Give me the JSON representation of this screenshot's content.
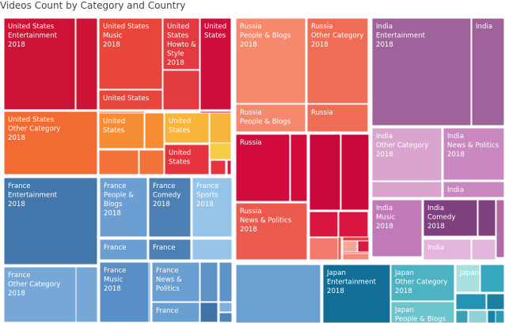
{
  "chart_data": {
    "type": "treemap",
    "title": "Videos Count by Category and Country",
    "colors": {
      "United States": [
        "#c8102e",
        "#d61f3a",
        "#e8483e",
        "#f0642f",
        "#f6883a",
        "#f7a743",
        "#f7c242",
        "#f8d54a"
      ],
      "Russia": [
        "#f4876b",
        "#e8594e",
        "#d8103a",
        "#c5062e",
        "#ef3b3b",
        "#f4a59a"
      ],
      "India": [
        "#9c5a91",
        "#c989bf",
        "#d4a1ca",
        "#7a2f78",
        "#e1b8da"
      ],
      "France": [
        "#3f73a7",
        "#5e8fc2",
        "#78a9d6",
        "#92c0e4",
        "#4979a9"
      ],
      "Japan": [
        "#0f6f94",
        "#4fb8c4",
        "#7dcdd2",
        "#a9dede",
        "#2a92b0"
      ]
    },
    "cells": [
      {
        "country": "United States",
        "category": "Entertainment",
        "label": [
          "United States",
          "Entertainment",
          "2018"
        ],
        "color": "#cc1235"
      },
      {
        "country": "United States",
        "category": "Entertainment",
        "label": [],
        "color": "#cc1235"
      },
      {
        "country": "United States",
        "category": "Music",
        "label": [
          "United States",
          "Music",
          "2018"
        ],
        "color": "#e9463b"
      },
      {
        "country": "United States",
        "category": "Music",
        "label": [
          "United States"
        ],
        "color": "#e9463b"
      },
      {
        "country": "United States",
        "category": "Howto & Style",
        "label": [
          "United",
          "States",
          "Howto &",
          "Style",
          "2018"
        ],
        "color": "#e23a40"
      },
      {
        "country": "United States",
        "category": "Howto & Style",
        "label": [],
        "color": "#e23a40"
      },
      {
        "country": "United States",
        "category": "",
        "label": [
          "United",
          "States"
        ],
        "color": "#cf0f3b"
      },
      {
        "country": "United States",
        "category": "",
        "label": [],
        "color": "#cf0f3b"
      },
      {
        "country": "United States",
        "category": "Other Category",
        "label": [
          "United States",
          "Other Category",
          "2018"
        ],
        "color": "#f26b32"
      },
      {
        "country": "United States",
        "category": "Other Category",
        "label": [],
        "color": "#f26b32"
      },
      {
        "country": "United States",
        "category": "",
        "label": [
          "United",
          "States"
        ],
        "color": "#f68c34"
      },
      {
        "country": "United States",
        "category": "",
        "label": [],
        "color": "#f68c34"
      },
      {
        "country": "United States",
        "category": "",
        "label": [],
        "color": "#f4733a"
      },
      {
        "country": "United States",
        "category": "",
        "label": [],
        "color": "#f4733a"
      },
      {
        "country": "United States",
        "category": "",
        "label": [
          "United",
          "States"
        ],
        "color": "#f7b53c"
      },
      {
        "country": "United States",
        "category": "",
        "label": [],
        "color": "#f7b53c"
      },
      {
        "country": "United States",
        "category": "",
        "label": [],
        "color": "#f8cc48"
      },
      {
        "country": "United States",
        "category": "",
        "label": [
          "United",
          "States"
        ],
        "color": "#e5343e"
      },
      {
        "country": "United States",
        "category": "",
        "label": [],
        "color": "#e5343e"
      },
      {
        "country": "United States",
        "category": "",
        "label": [],
        "color": "#d11d45"
      },
      {
        "country": "Russia",
        "category": "People & Blogs",
        "label": [
          "Russia",
          "People & Blogs",
          "2018"
        ],
        "color": "#f5896e"
      },
      {
        "country": "Russia",
        "category": "People & Blogs",
        "label": [
          "Russia",
          "People & Blogs"
        ],
        "color": "#f5896e"
      },
      {
        "country": "Russia",
        "category": "Other Category",
        "label": [
          "Russia",
          "Other Category",
          "2018"
        ],
        "color": "#f06d55"
      },
      {
        "country": "Russia",
        "category": "Other Category",
        "label": [
          "Russia"
        ],
        "color": "#f06d55"
      },
      {
        "country": "Russia",
        "category": "",
        "label": [
          "Russia"
        ],
        "color": "#d30a3c"
      },
      {
        "country": "Russia",
        "category": "",
        "label": [],
        "color": "#d30a3c"
      },
      {
        "country": "Russia",
        "category": "",
        "label": [],
        "color": "#c8083a"
      },
      {
        "country": "Russia",
        "category": "",
        "label": [],
        "color": "#c8083a"
      },
      {
        "country": "Russia",
        "category": "",
        "label": [],
        "color": "#d8163f"
      },
      {
        "country": "Russia",
        "category": "",
        "label": [],
        "color": "#d8163f"
      },
      {
        "country": "Russia",
        "category": "News & Politics",
        "label": [
          "Russia",
          "News & Politics",
          "2018"
        ],
        "color": "#ea5a4d"
      },
      {
        "country": "Russia",
        "category": "News & Politics",
        "label": [],
        "color": "#ea5a4d"
      },
      {
        "country": "Russia",
        "category": "",
        "label": [],
        "color": "#ee3d44"
      },
      {
        "country": "Russia",
        "category": "",
        "label": [],
        "color": "#f47a6d"
      },
      {
        "country": "Russia",
        "category": "",
        "label": [],
        "color": "#f5a699"
      },
      {
        "country": "Russia",
        "category": "",
        "label": [],
        "color": "#d51b3e"
      },
      {
        "country": "Russia",
        "category": "",
        "label": [],
        "color": "#f18a78"
      },
      {
        "country": "India",
        "category": "Entertainment",
        "label": [
          "India",
          "Entertainment",
          "2018"
        ],
        "color": "#a0629a"
      },
      {
        "country": "India",
        "category": "Entertainment",
        "label": [
          "India"
        ],
        "color": "#a0629a"
      },
      {
        "country": "India",
        "category": "Other Category",
        "label": [
          "India",
          "Other Category",
          "2018"
        ],
        "color": "#d9a5cf"
      },
      {
        "country": "India",
        "category": "Other Category",
        "label": [],
        "color": "#d9a5cf"
      },
      {
        "country": "India",
        "category": "News & Politics",
        "label": [
          "India",
          "News & Politics",
          "2018"
        ],
        "color": "#c989c0"
      },
      {
        "country": "India",
        "category": "News & Politics",
        "label": [
          "India"
        ],
        "color": "#c989c0"
      },
      {
        "country": "India",
        "category": "Music",
        "label": [
          "India",
          "Music",
          "2018"
        ],
        "color": "#c07ab8"
      },
      {
        "country": "India",
        "category": "Music",
        "label": [],
        "color": "#c07ab8"
      },
      {
        "country": "India",
        "category": "Comedy",
        "label": [
          "India",
          "Comedy",
          "2018"
        ],
        "color": "#804080"
      },
      {
        "country": "India",
        "category": "Comedy",
        "label": [],
        "color": "#804080"
      },
      {
        "country": "India",
        "category": "",
        "label": [
          "India"
        ],
        "color": "#e3b4dc"
      },
      {
        "country": "India",
        "category": "",
        "label": [],
        "color": "#e3b4dc"
      },
      {
        "country": "India",
        "category": "",
        "label": [],
        "color": "#b16aa6"
      },
      {
        "country": "France",
        "category": "Entertainment",
        "label": [
          "France",
          "Entertainment",
          "2018"
        ],
        "color": "#4177ab"
      },
      {
        "country": "France",
        "category": "Other Category",
        "label": [
          "France",
          "Other Category",
          "2018"
        ],
        "color": "#77a7d6"
      },
      {
        "country": "France",
        "category": "Other Category",
        "label": [],
        "color": "#77a7d6"
      },
      {
        "country": "France",
        "category": "People & Blogs",
        "label": [
          "France",
          "People &",
          "Blogs",
          "2018"
        ],
        "color": "#6b9ed3"
      },
      {
        "country": "France",
        "category": "People & Blogs",
        "label": [
          "France"
        ],
        "color": "#6b9ed3"
      },
      {
        "country": "France",
        "category": "Comedy",
        "label": [
          "France",
          "Comedy",
          "2018"
        ],
        "color": "#4c80b4"
      },
      {
        "country": "France",
        "category": "Comedy",
        "label": [
          "France"
        ],
        "color": "#4c80b4"
      },
      {
        "country": "France",
        "category": "Sports",
        "label": [
          "France",
          "Sports",
          "2018"
        ],
        "color": "#95c4e8"
      },
      {
        "country": "France",
        "category": "Sports",
        "label": [],
        "color": "#95c4e8"
      },
      {
        "country": "France",
        "category": "Music",
        "label": [
          "France",
          "Music",
          "2018"
        ],
        "color": "#5a8ec6"
      },
      {
        "country": "France",
        "category": "Music",
        "label": [],
        "color": "#5a8ec6"
      },
      {
        "country": "France",
        "category": "News & Politics",
        "label": [
          "France",
          "News &",
          "Politics"
        ],
        "color": "#6a9fd2"
      },
      {
        "country": "France",
        "category": "News & Politics",
        "label": [
          "France"
        ],
        "color": "#6a9fd2"
      },
      {
        "country": "France",
        "category": "",
        "label": [],
        "color": "#5e93c8"
      },
      {
        "country": "France",
        "category": "",
        "label": [],
        "color": "#5e93c8"
      },
      {
        "country": "France",
        "category": "",
        "label": [],
        "color": "#3f73a7"
      },
      {
        "country": "France",
        "category": "",
        "label": [],
        "color": "#7fb0dc"
      },
      {
        "country": "France",
        "category": "",
        "label": [],
        "color": "#4f84b8"
      },
      {
        "country": "France",
        "category": "",
        "label": [],
        "color": "#6ba0d2"
      },
      {
        "country": "Japan",
        "category": "Entertainment",
        "label": [
          "Japan",
          "Entertainment",
          "2018"
        ],
        "color": "#126e96"
      },
      {
        "country": "Japan",
        "category": "Other Category",
        "label": [
          "Japan",
          "Other Category",
          "2018"
        ],
        "color": "#4db2c2"
      },
      {
        "country": "Japan",
        "category": "People & Blogs",
        "label": [
          "Japan",
          "People & Blogs"
        ],
        "color": "#6cc5cc"
      },
      {
        "country": "Japan",
        "category": "People & Blogs",
        "label": [
          "Japan"
        ],
        "color": "#a8e0df"
      },
      {
        "country": "Japan",
        "category": "",
        "label": [],
        "color": "#38a6bc"
      },
      {
        "country": "Japan",
        "category": "",
        "label": [],
        "color": "#2594b4"
      },
      {
        "country": "Japan",
        "category": "",
        "label": [],
        "color": "#1b7fa2"
      },
      {
        "country": "Japan",
        "category": "",
        "label": [],
        "color": "#3aa0b9"
      },
      {
        "country": "Japan",
        "category": "",
        "label": [],
        "color": "#8fd3d5"
      },
      {
        "country": "Japan",
        "category": "",
        "label": [],
        "color": "#1384a8"
      },
      {
        "country": "Japan",
        "category": "",
        "label": [],
        "color": "#2c9cb6"
      },
      {
        "country": "Japan",
        "category": "",
        "label": [],
        "color": "#0d6e93"
      }
    ]
  }
}
